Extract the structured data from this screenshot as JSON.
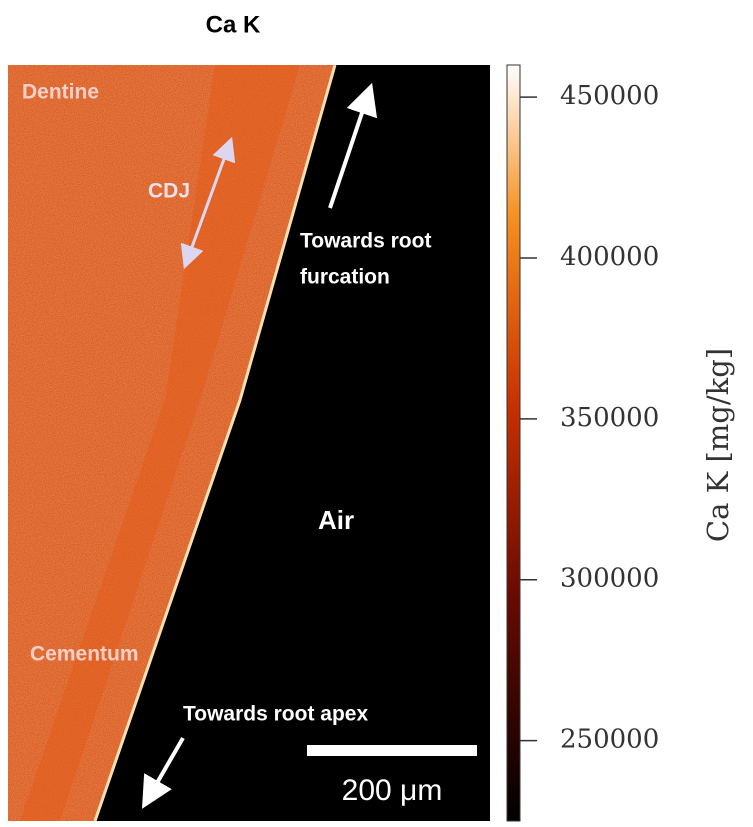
{
  "title": "Ca K",
  "annotations": {
    "dentine": "Dentine",
    "cdj": "CDJ",
    "furcation_line1": "Towards root",
    "furcation_line2": "furcation",
    "air": "Air",
    "cementum": "Cementum",
    "apex": "Towards root apex"
  },
  "scale_bar": {
    "label": "200 μm"
  },
  "colorbar": {
    "label": "Ca K  [mg/kg]",
    "lim": [
      225000,
      460000
    ],
    "ticks": [
      250000,
      300000,
      350000,
      400000,
      450000
    ]
  }
}
